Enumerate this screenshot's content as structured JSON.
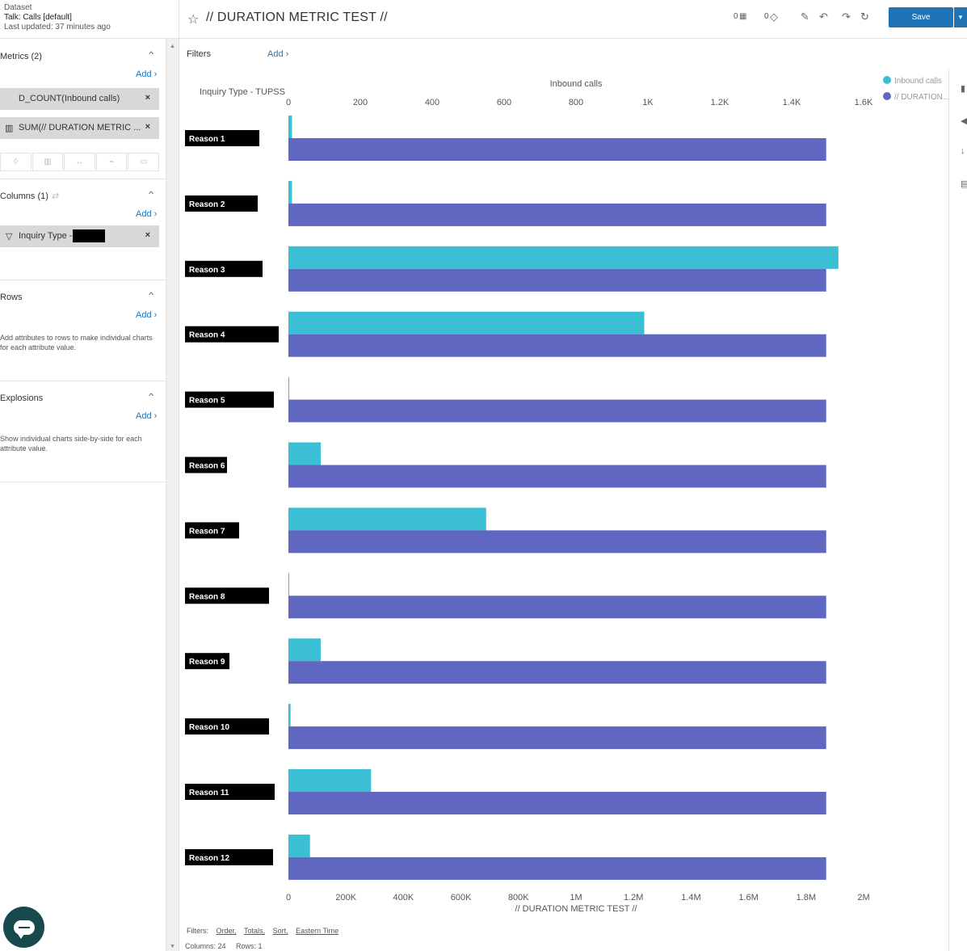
{
  "dataset": {
    "label": "Dataset",
    "name": "Talk: Calls [default]",
    "updated": "Last updated: 37 minutes ago"
  },
  "toolbar": {
    "title": "// DURATION METRIC TEST //",
    "count1": "0",
    "count2": "0",
    "save_label": "Save"
  },
  "sidebar": {
    "metrics": {
      "title": "Metrics (2)",
      "add": "Add ›",
      "items": [
        "D_COUNT(Inbound calls)",
        "SUM(// DURATION METRIC ..."
      ]
    },
    "columns": {
      "title": "Columns (1)",
      "add": "Add ›",
      "items": [
        "Inquiry Type -"
      ]
    },
    "rows": {
      "title": "Rows",
      "add": "Add ›",
      "hint": "Add attributes to rows to make individual charts for each attribute value."
    },
    "explosions": {
      "title": "Explosions",
      "add": "Add ›",
      "hint": "Show individual charts side-by-side for each attribute value."
    }
  },
  "filters": {
    "label": "Filters",
    "add": "Add ›"
  },
  "footer": {
    "filters_label": "Filters:",
    "links": [
      "Order,",
      "Totals,",
      "Sort,",
      "Eastern Time"
    ],
    "columns": "Columns: 24",
    "rows": "Rows: 1"
  },
  "colors": {
    "inbound": "#3bbfd5",
    "duration": "#5f67c0",
    "accent": "#1f73b7",
    "label_box": "#000000"
  },
  "chart_data": {
    "type": "bar",
    "orientation": "horizontal",
    "category_header": "Inquiry Type - TUPSS",
    "categories": [
      "Reason 1",
      "Reason 2",
      "Reason 3",
      "Reason 4",
      "Reason 5",
      "Reason 6",
      "Reason 7",
      "Reason 8",
      "Reason 9",
      "Reason 10",
      "Reason 11",
      "Reason 12"
    ],
    "series": [
      {
        "name": "Inbound calls",
        "legend_label": "Inbound calls",
        "axis": "top",
        "values": [
          10,
          10,
          1530,
          990,
          1,
          90,
          550,
          2,
          90,
          6,
          230,
          60
        ]
      },
      {
        "name": "// DURATION METRIC TEST //",
        "legend_label": "// DURATION...",
        "axis": "bottom",
        "values": [
          1870000,
          1870000,
          1870000,
          1870000,
          1870000,
          1870000,
          1870000,
          1870000,
          1870000,
          1870000,
          1870000,
          1870000
        ]
      }
    ],
    "top_axis": {
      "label": "Inbound calls",
      "range": [
        0,
        1600
      ],
      "ticks": [
        0,
        200,
        400,
        600,
        800,
        1000,
        1200,
        1400,
        1600
      ],
      "tick_labels": [
        "0",
        "200",
        "400",
        "600",
        "800",
        "1K",
        "1.2K",
        "1.4K",
        "1.6K"
      ]
    },
    "bottom_axis": {
      "label": "// DURATION METRIC TEST //",
      "range": [
        0,
        2000000
      ],
      "ticks": [
        0,
        200000,
        400000,
        600000,
        800000,
        1000000,
        1200000,
        1400000,
        1600000,
        1800000,
        2000000
      ],
      "tick_labels": [
        "0",
        "200K",
        "400K",
        "600K",
        "800K",
        "1M",
        "1.2M",
        "1.4M",
        "1.6M",
        "1.8M",
        "2M"
      ]
    },
    "legend_position": "top-right"
  }
}
